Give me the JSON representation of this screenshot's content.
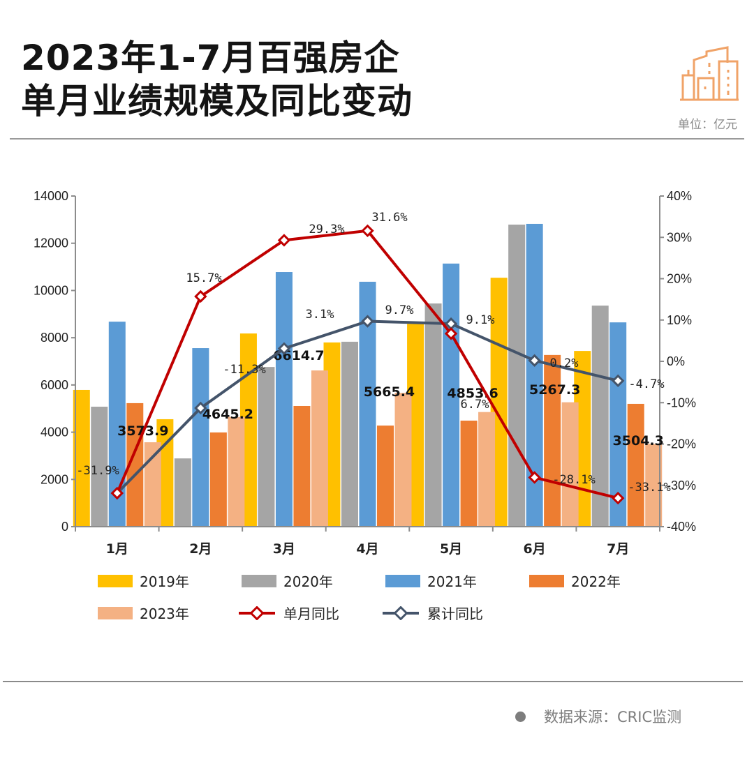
{
  "header": {
    "title_line1": "2023年1-7月百强房企",
    "title_line2": "单月业绩规模及同比变动",
    "unit": "单位：亿元",
    "logo_icon": "buildings-icon"
  },
  "footer": {
    "source": "数据来源：CRIC监测"
  },
  "colors": {
    "2019": "#FFC000",
    "2020": "#A5A5A5",
    "2021": "#5B9BD5",
    "2022": "#ED7D31",
    "2023": "#F4B183",
    "monthly_yoy": "#C00000",
    "cumulative_yoy": "#44546A"
  },
  "chart_data": {
    "type": "bar",
    "title": "2023年1-7月百强房企单月业绩规模及同比变动",
    "categories": [
      "1月",
      "2月",
      "3月",
      "4月",
      "5月",
      "6月",
      "7月"
    ],
    "ylabel": "亿元",
    "ylim": [
      0,
      14000
    ],
    "yticks": [
      0,
      2000,
      4000,
      6000,
      8000,
      10000,
      12000,
      14000
    ],
    "y2lim": [
      -40,
      40
    ],
    "y2ticks": [
      -40,
      -30,
      -20,
      -10,
      0,
      10,
      20,
      30,
      40
    ],
    "y2tick_labels": [
      "-40%",
      "-30%",
      "-20%",
      "-10%",
      "0%",
      "10%",
      "20%",
      "30%",
      "40%"
    ],
    "series": [
      {
        "name": "2019年",
        "kind": "bar",
        "values": [
          5790,
          4550,
          8180,
          7800,
          8590,
          10540,
          7440
        ]
      },
      {
        "name": "2020年",
        "kind": "bar",
        "values": [
          5080,
          2890,
          6760,
          7830,
          9450,
          12790,
          9360
        ]
      },
      {
        "name": "2021年",
        "kind": "bar",
        "values": [
          8680,
          7560,
          10780,
          10370,
          11140,
          12820,
          8650
        ]
      },
      {
        "name": "2022年",
        "kind": "bar",
        "values": [
          5230,
          3990,
          5110,
          4280,
          4490,
          7270,
          5200
        ]
      },
      {
        "name": "2023年",
        "kind": "bar",
        "values": [
          3573.9,
          4645.2,
          6614.7,
          5665.4,
          4853.6,
          5267.3,
          3504.3
        ],
        "labels": [
          "3573.9",
          "4645.2",
          "6614.7",
          "5665.4",
          "4853.6",
          "5267.3",
          "3504.3"
        ]
      },
      {
        "name": "单月同比",
        "kind": "line",
        "axis": "right",
        "values": [
          -31.9,
          15.7,
          29.3,
          31.6,
          6.7,
          -28.1,
          -33.1
        ],
        "labels": [
          "-31.9%",
          "15.7%",
          "29.3%",
          "31.6%",
          "6.7%",
          "-28.1%",
          "-33.1%"
        ]
      },
      {
        "name": "累计同比",
        "kind": "line",
        "axis": "right",
        "values": [
          -31.9,
          -11.3,
          3.1,
          9.7,
          9.1,
          0.2,
          -4.7
        ],
        "labels": [
          "",
          "-11.3%",
          "3.1%",
          "9.7%",
          "9.1%",
          "0.2%",
          "-4.7%"
        ]
      }
    ],
    "legend": [
      "2019年",
      "2020年",
      "2021年",
      "2022年",
      "2023年",
      "单月同比",
      "累计同比"
    ],
    "legend_position": "bottom",
    "grid": false
  }
}
